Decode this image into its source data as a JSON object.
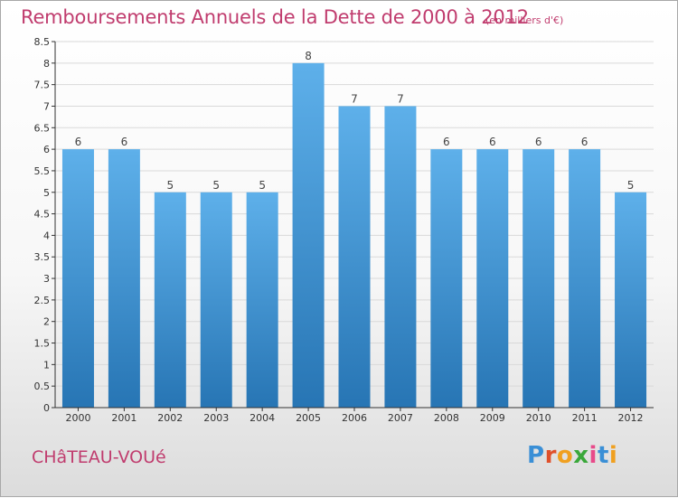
{
  "title": "Remboursements Annuels de la Dette de 2000 à 2012",
  "subtitle": "(en milliers d'€)",
  "commune": "CHâTEAU-VOUé",
  "logo": {
    "text": "Proxiti",
    "letter_colors": [
      "#3a8fd6",
      "#e0502a",
      "#f0a020",
      "#3aa83a",
      "#e84a8a",
      "#3a8fd6",
      "#f0a020"
    ]
  },
  "colors": {
    "bar_top": "#5eb0ea",
    "bar_bottom": "#2775b4",
    "title": "#c03c6e",
    "grid": "#d9d9d9",
    "axis": "#333333"
  },
  "chart_data": {
    "type": "bar",
    "categories": [
      "2000",
      "2001",
      "2002",
      "2003",
      "2004",
      "2005",
      "2006",
      "2007",
      "2008",
      "2009",
      "2010",
      "2011",
      "2012"
    ],
    "values": [
      6,
      6,
      5,
      5,
      5,
      8,
      7,
      7,
      6,
      6,
      6,
      6,
      5
    ],
    "data_labels": [
      "6",
      "6",
      "5",
      "5",
      "5",
      "8",
      "7",
      "7",
      "6",
      "6",
      "6",
      "6",
      "5"
    ],
    "yticks": [
      "0",
      "0.5",
      "1",
      "1.5",
      "2",
      "2.5",
      "3",
      "3.5",
      "4",
      "4.5",
      "5",
      "5.5",
      "6",
      "6.5",
      "7",
      "7.5",
      "8",
      "8.5"
    ],
    "ylim": [
      0,
      8.5
    ],
    "grid": true,
    "xlabel": "",
    "ylabel": ""
  }
}
